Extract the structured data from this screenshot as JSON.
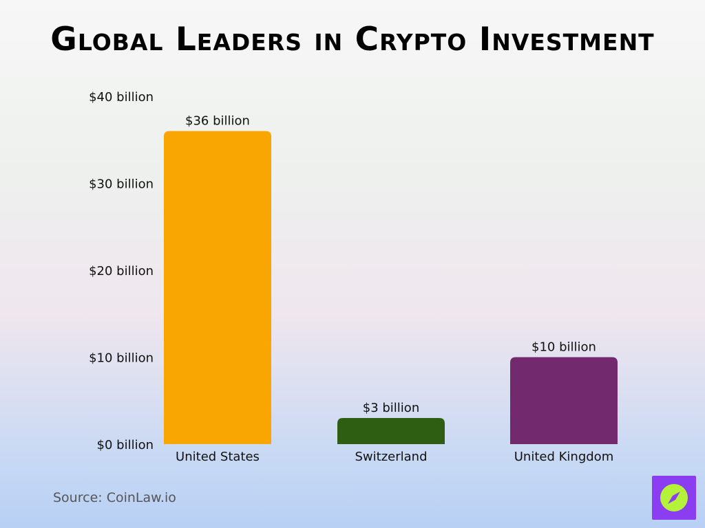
{
  "title": "Global Leaders in Crypto Investment",
  "source": "Source: CoinLaw.io",
  "logo_icon": "compass-icon",
  "colors": {
    "logo_bg": "#8b3df2",
    "logo_circle": "#b5f23a"
  },
  "chart_data": {
    "type": "bar",
    "categories": [
      "United States",
      "Switzerland",
      "United Kingdom"
    ],
    "values": [
      36,
      3,
      10
    ],
    "value_labels": [
      "$36 billion",
      "$3 billion",
      "$10 billion"
    ],
    "colors": [
      "#f9a602",
      "#2d5e12",
      "#72296e"
    ],
    "ylim": [
      0,
      40
    ],
    "yticks": [
      0,
      10,
      20,
      30,
      40
    ],
    "ytick_labels": [
      "$0 billion",
      "$10 billion",
      "$20 billion",
      "$30 billion",
      "$40 billion"
    ],
    "grid": false,
    "legend": "none"
  }
}
